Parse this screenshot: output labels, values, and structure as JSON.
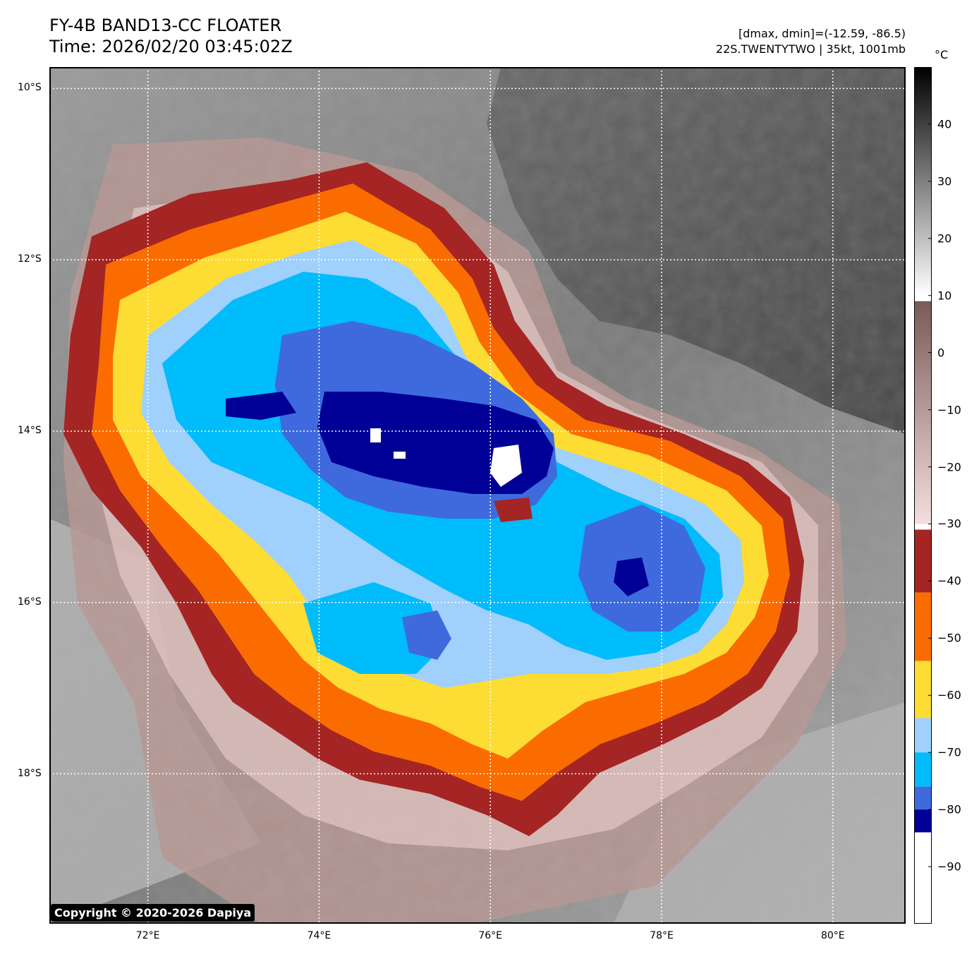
{
  "header": {
    "title": "FY-4B BAND13-CC FLOATER",
    "time": "Time: 2026/02/20 03:45:02Z",
    "range_text": "[dmax, dmin]=(-12.59, -86.5)",
    "storm_text": "22S.TWENTYTWO | 35kt, 1001mb"
  },
  "map": {
    "lat_range": [
      -19.75,
      -9.75
    ],
    "lon_range": [
      70.85,
      80.85
    ],
    "lat_ticks": [
      {
        "value": -10,
        "label": "10°S"
      },
      {
        "value": -12,
        "label": "12°S"
      },
      {
        "value": -14,
        "label": "14°S"
      },
      {
        "value": -16,
        "label": "16°S"
      },
      {
        "value": -18,
        "label": "18°S"
      }
    ],
    "lon_ticks": [
      {
        "value": 72,
        "label": "72°E"
      },
      {
        "value": 74,
        "label": "74°E"
      },
      {
        "value": 76,
        "label": "76°E"
      },
      {
        "value": 78,
        "label": "78°E"
      },
      {
        "value": 80,
        "label": "80°E"
      }
    ],
    "gridlines": true,
    "storm_center": {
      "lon": 76.3,
      "lat": -14.4
    },
    "secondary_center": {
      "lon": 77.9,
      "lat": -15.8
    }
  },
  "colorbar": {
    "unit": "°C",
    "range": [
      -100,
      50
    ],
    "ticks": [
      {
        "value": 40,
        "label": "40"
      },
      {
        "value": 30,
        "label": "30"
      },
      {
        "value": 20,
        "label": "20"
      },
      {
        "value": 10,
        "label": "10"
      },
      {
        "value": 0,
        "label": "0"
      },
      {
        "value": -10,
        "label": "−10"
      },
      {
        "value": -20,
        "label": "−20"
      },
      {
        "value": -30,
        "label": "−30"
      },
      {
        "value": -40,
        "label": "−40"
      },
      {
        "value": -50,
        "label": "−50"
      },
      {
        "value": -60,
        "label": "−60"
      },
      {
        "value": -70,
        "label": "−70"
      },
      {
        "value": -80,
        "label": "−80"
      },
      {
        "value": -90,
        "label": "−90"
      }
    ],
    "bands": [
      {
        "from": 50,
        "to": 10,
        "type": "gradient",
        "colors": [
          "#000000",
          "#ffffff"
        ]
      },
      {
        "from": 9,
        "to": -30,
        "type": "gradient",
        "colors": [
          "#7a5a58",
          "#f5dede"
        ]
      },
      {
        "from": -31,
        "to": -42,
        "type": "solid",
        "color": "#a42524"
      },
      {
        "from": -42,
        "to": -54,
        "type": "solid",
        "color": "#fa6c00"
      },
      {
        "from": -54,
        "to": -64,
        "type": "solid",
        "color": "#fddc34"
      },
      {
        "from": -64,
        "to": -70,
        "type": "solid",
        "color": "#a0d0fc"
      },
      {
        "from": -70,
        "to": -76,
        "type": "solid",
        "color": "#00bcfa"
      },
      {
        "from": -76,
        "to": -80,
        "type": "solid",
        "color": "#3e6ade"
      },
      {
        "from": -80,
        "to": -84,
        "type": "solid",
        "color": "#000096"
      },
      {
        "from": -84,
        "to": -100,
        "type": "solid",
        "color": "#ffffff"
      }
    ]
  },
  "copyright": "Copyright © 2020-2026 Dapiya"
}
